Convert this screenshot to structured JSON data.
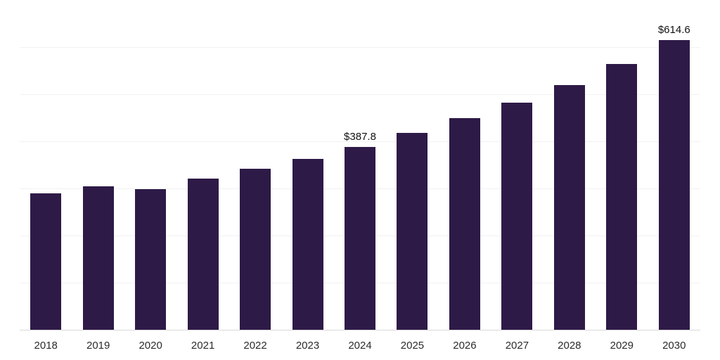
{
  "chart_data": {
    "type": "bar",
    "title": "",
    "xlabel": "",
    "ylabel": "",
    "categories": [
      "2018",
      "2019",
      "2020",
      "2021",
      "2022",
      "2023",
      "2024",
      "2025",
      "2026",
      "2027",
      "2028",
      "2029",
      "2030"
    ],
    "values": [
      289.5,
      304.0,
      298.0,
      320.5,
      341.5,
      363.0,
      387.8,
      417.0,
      448.5,
      482.0,
      519.5,
      564.0,
      614.6
    ],
    "ylim": [
      0,
      680
    ],
    "grid": true,
    "grid_interval": 100,
    "legend": "none",
    "bar_color": "#2e1a47",
    "data_labels": [
      {
        "index": 6,
        "text": "$387.8"
      },
      {
        "index": 12,
        "text": "$614.6"
      }
    ]
  }
}
